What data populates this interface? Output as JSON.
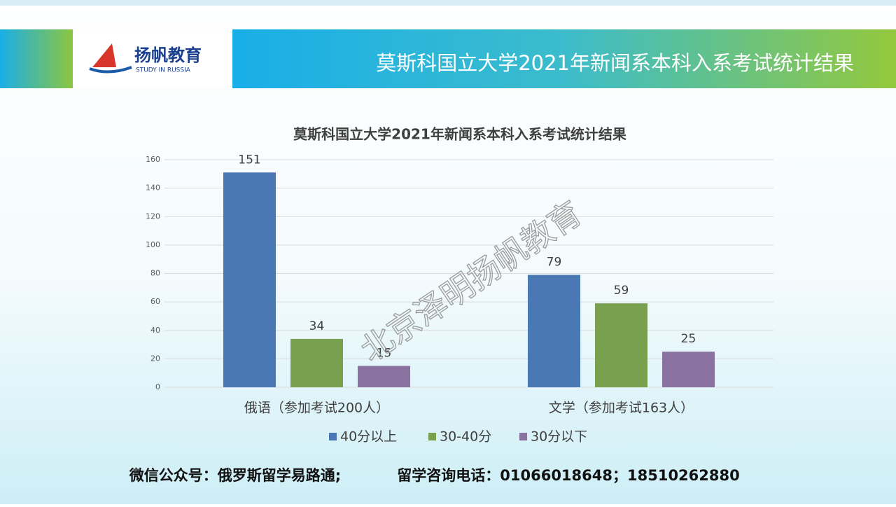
{
  "header": {
    "logo_text": "扬帆教育",
    "logo_subtext": "STUDY IN RUSSIA",
    "title": "莫斯科国立大学2021年新闻系本科入系考试统计结果"
  },
  "watermark": "北京泽明扬帆教育",
  "footer": {
    "wechat": "微信公众号：俄罗斯留学易路通;",
    "phone": "留学咨询电话：01066018648；18510262880"
  },
  "chart_data": {
    "type": "bar",
    "title": "莫斯科国立大学2021年新闻系本科入系考试统计结果",
    "categories": [
      "俄语（参加考试200人）",
      "文学（参加考试163人）"
    ],
    "series": [
      {
        "name": "40分以上",
        "color": "#4a78b4",
        "values": [
          151,
          79
        ]
      },
      {
        "name": "30-40分",
        "color": "#78a04e",
        "values": [
          34,
          59
        ]
      },
      {
        "name": "30分以下",
        "color": "#8a72a0",
        "values": [
          15,
          25
        ]
      }
    ],
    "ylim": [
      0,
      160
    ],
    "yticks": [
      0,
      20,
      40,
      60,
      80,
      100,
      120,
      140,
      160
    ],
    "grid": true,
    "legend": "bottom"
  }
}
